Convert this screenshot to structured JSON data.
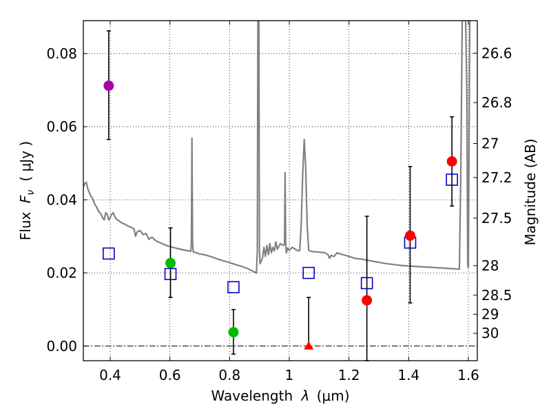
{
  "chart_data": {
    "type": "scatter",
    "xlabel_prefix": "Wavelength",
    "xlabel_symbol": "λ",
    "xlabel_unit": "(μm)",
    "ylabel_prefix": "Flux",
    "ylabel_symbol": "F",
    "ylabel_subscript": "ν",
    "ylabel_unit": "( μJy )",
    "y2label": "Magnitude (AB)",
    "xlim": [
      0.31,
      1.63
    ],
    "ylim": [
      -0.004,
      0.089
    ],
    "x_ticks": [
      0.4,
      0.6,
      0.8,
      1.0,
      1.2,
      1.4,
      1.6
    ],
    "x_tick_labels": [
      "0.4",
      "0.6",
      "0.8",
      "1",
      "1.2",
      "1.4",
      "1.6"
    ],
    "y_ticks": [
      0.0,
      0.02,
      0.04,
      0.06,
      0.08
    ],
    "y_tick_labels": [
      "0.00",
      "0.02",
      "0.04",
      "0.06",
      "0.08"
    ],
    "mag_ticks": [
      {
        "label": "26.6",
        "flux": 0.0801
      },
      {
        "label": "26.8",
        "flux": 0.0666
      },
      {
        "label": "27",
        "flux": 0.0554
      },
      {
        "label": "27.2",
        "flux": 0.0461
      },
      {
        "label": "27.5",
        "flux": 0.035
      },
      {
        "label": "28",
        "flux": 0.022
      },
      {
        "label": "28.5",
        "flux": 0.0139
      },
      {
        "label": "29",
        "flux": 0.0087
      },
      {
        "label": "30",
        "flux": 0.0035
      }
    ],
    "grid": true,
    "zero_line": 0.0,
    "colors": {
      "template": "#808080",
      "model": "#0000cc",
      "purple": "#aa00aa",
      "green": "#00bb00",
      "red": "#ff0000",
      "errorbar": "#000000"
    },
    "observed_points": [
      {
        "x": 0.395,
        "y": 0.0712,
        "yerr_low": 0.0565,
        "yerr_high": 0.0862,
        "color": "purple",
        "marker": "circle"
      },
      {
        "x": 0.602,
        "y": 0.0227,
        "yerr_low": 0.0133,
        "yerr_high": 0.0323,
        "color": "green",
        "marker": "circle"
      },
      {
        "x": 0.813,
        "y": 0.0038,
        "yerr_low": -0.0022,
        "yerr_high": 0.01,
        "color": "green",
        "marker": "circle"
      },
      {
        "x": 1.065,
        "y": 0.0,
        "yerr_low": 0.0,
        "yerr_high": 0.0133,
        "color": "red",
        "marker": "triangle"
      },
      {
        "x": 1.26,
        "y": 0.0125,
        "yerr_low": -0.004,
        "yerr_high": 0.0355,
        "color": "red",
        "marker": "circle"
      },
      {
        "x": 1.405,
        "y": 0.0302,
        "yerr_low": 0.0118,
        "yerr_high": 0.0491,
        "color": "red",
        "marker": "circle"
      },
      {
        "x": 1.545,
        "y": 0.0505,
        "yerr_low": 0.0383,
        "yerr_high": 0.0627,
        "color": "red",
        "marker": "circle"
      }
    ],
    "model_points": [
      {
        "x": 0.395,
        "y": 0.0253
      },
      {
        "x": 0.602,
        "y": 0.0197
      },
      {
        "x": 0.813,
        "y": 0.0161
      },
      {
        "x": 1.065,
        "y": 0.02
      },
      {
        "x": 1.26,
        "y": 0.0172
      },
      {
        "x": 1.405,
        "y": 0.0283
      },
      {
        "x": 1.545,
        "y": 0.0455
      }
    ],
    "template_spectrum": [
      [
        0.31,
        0.0435
      ],
      [
        0.315,
        0.0445
      ],
      [
        0.32,
        0.0448
      ],
      [
        0.325,
        0.043
      ],
      [
        0.33,
        0.042
      ],
      [
        0.335,
        0.041
      ],
      [
        0.34,
        0.0405
      ],
      [
        0.345,
        0.0395
      ],
      [
        0.35,
        0.0385
      ],
      [
        0.355,
        0.038
      ],
      [
        0.36,
        0.037
      ],
      [
        0.365,
        0.0365
      ],
      [
        0.37,
        0.036
      ],
      [
        0.375,
        0.035
      ],
      [
        0.38,
        0.0345
      ],
      [
        0.385,
        0.0365
      ],
      [
        0.39,
        0.036
      ],
      [
        0.395,
        0.0345
      ],
      [
        0.4,
        0.0352
      ],
      [
        0.405,
        0.036
      ],
      [
        0.41,
        0.0365
      ],
      [
        0.415,
        0.0355
      ],
      [
        0.42,
        0.0348
      ],
      [
        0.43,
        0.0342
      ],
      [
        0.44,
        0.0336
      ],
      [
        0.45,
        0.0333
      ],
      [
        0.46,
        0.0328
      ],
      [
        0.47,
        0.0325
      ],
      [
        0.48,
        0.032
      ],
      [
        0.485,
        0.03
      ],
      [
        0.49,
        0.0312
      ],
      [
        0.5,
        0.0316
      ],
      [
        0.51,
        0.0305
      ],
      [
        0.52,
        0.0308
      ],
      [
        0.53,
        0.0292
      ],
      [
        0.54,
        0.0298
      ],
      [
        0.55,
        0.029
      ],
      [
        0.56,
        0.0285
      ],
      [
        0.57,
        0.0282
      ],
      [
        0.58,
        0.0278
      ],
      [
        0.59,
        0.0275
      ],
      [
        0.6,
        0.0272
      ],
      [
        0.61,
        0.027
      ],
      [
        0.62,
        0.0268
      ],
      [
        0.63,
        0.0266
      ],
      [
        0.64,
        0.0264
      ],
      [
        0.65,
        0.0262
      ],
      [
        0.66,
        0.0261
      ],
      [
        0.67,
        0.0259
      ],
      [
        0.672,
        0.028
      ],
      [
        0.674,
        0.0568
      ],
      [
        0.676,
        0.028
      ],
      [
        0.678,
        0.0258
      ],
      [
        0.7,
        0.0252
      ],
      [
        0.72,
        0.0249
      ],
      [
        0.74,
        0.0244
      ],
      [
        0.76,
        0.0238
      ],
      [
        0.78,
        0.0233
      ],
      [
        0.8,
        0.0228
      ],
      [
        0.82,
        0.0223
      ],
      [
        0.84,
        0.0218
      ],
      [
        0.86,
        0.0212
      ],
      [
        0.87,
        0.0208
      ],
      [
        0.88,
        0.0204
      ],
      [
        0.89,
        0.02
      ],
      [
        0.893,
        0.026
      ],
      [
        0.895,
        0.093
      ],
      [
        0.898,
        0.093
      ],
      [
        0.9,
        0.026
      ],
      [
        0.902,
        0.0225
      ],
      [
        0.91,
        0.024
      ],
      [
        0.915,
        0.027
      ],
      [
        0.92,
        0.0245
      ],
      [
        0.925,
        0.0275
      ],
      [
        0.93,
        0.025
      ],
      [
        0.935,
        0.028
      ],
      [
        0.94,
        0.0255
      ],
      [
        0.945,
        0.027
      ],
      [
        0.95,
        0.026
      ],
      [
        0.955,
        0.0285
      ],
      [
        0.96,
        0.0265
      ],
      [
        0.97,
        0.028
      ],
      [
        0.98,
        0.0275
      ],
      [
        0.984,
        0.028
      ],
      [
        0.986,
        0.0474
      ],
      [
        0.988,
        0.028
      ],
      [
        0.99,
        0.0255
      ],
      [
        0.995,
        0.0268
      ],
      [
        1.0,
        0.0262
      ],
      [
        1.01,
        0.027
      ],
      [
        1.02,
        0.0265
      ],
      [
        1.03,
        0.026
      ],
      [
        1.035,
        0.0262
      ],
      [
        1.04,
        0.033
      ],
      [
        1.045,
        0.047
      ],
      [
        1.05,
        0.0565
      ],
      [
        1.055,
        0.049
      ],
      [
        1.06,
        0.033
      ],
      [
        1.065,
        0.0262
      ],
      [
        1.07,
        0.026
      ],
      [
        1.08,
        0.0258
      ],
      [
        1.1,
        0.0257
      ],
      [
        1.12,
        0.0255
      ],
      [
        1.13,
        0.025
      ],
      [
        1.135,
        0.024
      ],
      [
        1.14,
        0.0248
      ],
      [
        1.15,
        0.0245
      ],
      [
        1.16,
        0.0255
      ],
      [
        1.18,
        0.025
      ],
      [
        1.2,
        0.0245
      ],
      [
        1.22,
        0.024
      ],
      [
        1.24,
        0.0238
      ],
      [
        1.26,
        0.0235
      ],
      [
        1.28,
        0.0232
      ],
      [
        1.3,
        0.0229
      ],
      [
        1.32,
        0.0226
      ],
      [
        1.34,
        0.0224
      ],
      [
        1.36,
        0.0222
      ],
      [
        1.38,
        0.022
      ],
      [
        1.4,
        0.0219
      ],
      [
        1.42,
        0.0218
      ],
      [
        1.44,
        0.0217
      ],
      [
        1.46,
        0.0216
      ],
      [
        1.48,
        0.0215
      ],
      [
        1.5,
        0.0214
      ],
      [
        1.52,
        0.0213
      ],
      [
        1.54,
        0.0212
      ],
      [
        1.56,
        0.0211
      ],
      [
        1.57,
        0.021
      ],
      [
        1.575,
        0.05
      ],
      [
        1.58,
        0.093
      ],
      [
        1.59,
        0.093
      ],
      [
        1.595,
        0.07
      ],
      [
        1.598,
        0.022
      ],
      [
        1.6,
        0.0215
      ],
      [
        1.605,
        0.093
      ],
      [
        1.63,
        0.093
      ]
    ]
  }
}
